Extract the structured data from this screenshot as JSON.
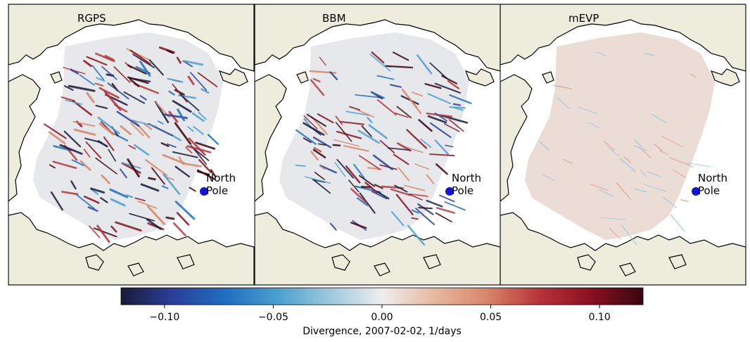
{
  "panels": [
    {
      "title": "RGPS",
      "style": "strong",
      "pole_label": [
        "North",
        "Pole"
      ]
    },
    {
      "title": "BBM",
      "style": "medium",
      "pole_label": [
        "North",
        "Pole"
      ]
    },
    {
      "title": "mEVP",
      "style": "faint",
      "pole_label": [
        "North",
        "Pole"
      ]
    }
  ],
  "colorbar": {
    "label": "Divergence, 2007-02-02, 1/days",
    "range": [
      -0.12,
      0.12
    ],
    "ticks": [
      {
        "value": -0.1,
        "label": "−0.10"
      },
      {
        "value": -0.05,
        "label": "−0.05"
      },
      {
        "value": 0.0,
        "label": "0.00"
      },
      {
        "value": 0.05,
        "label": "0.05"
      },
      {
        "value": 0.1,
        "label": "0.10"
      }
    ],
    "colormap": [
      "#1a1a3a",
      "#2a3f9a",
      "#1f6ec0",
      "#4a9fd0",
      "#9dc8de",
      "#eeeeee",
      "#e8b8a0",
      "#d8866a",
      "#b8343a",
      "#8a1020",
      "#3a0610"
    ]
  },
  "colors": {
    "land": "#eeecdc",
    "ocean": "#ffffff",
    "coast": "#000000",
    "pole_marker": "#1414d8"
  }
}
